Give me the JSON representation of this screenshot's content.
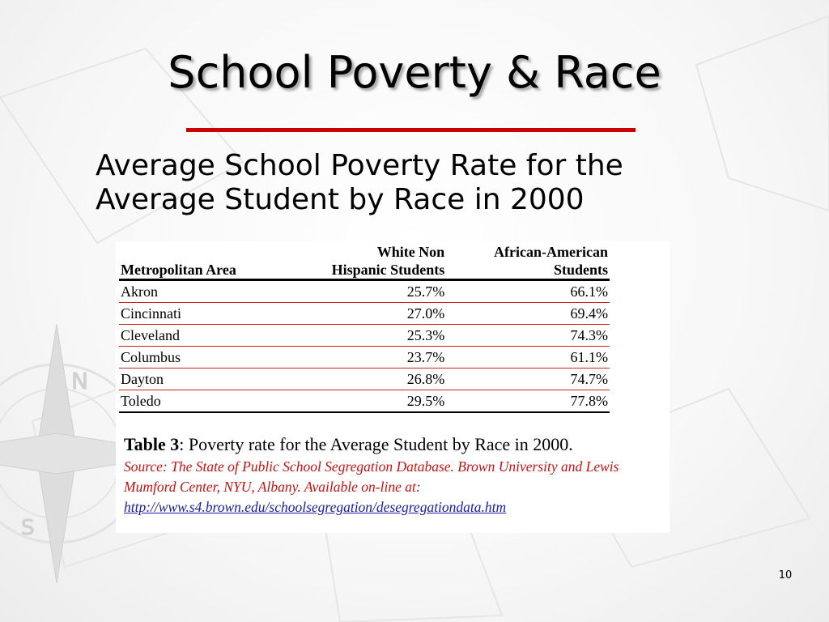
{
  "slide": {
    "title": "School Poverty & Race",
    "subtitle_line1": "Average School Poverty Rate for the",
    "subtitle_line2": "Average Student by Race in 2000",
    "page_number": "10"
  },
  "table": {
    "headers": {
      "area": "Metropolitan Area",
      "white_line1": "White Non",
      "white_line2": "Hispanic Students",
      "black_line1": "African-American",
      "black_line2": "Students"
    },
    "rows": [
      {
        "area": "Akron",
        "white": "25.7%",
        "black": "66.1%"
      },
      {
        "area": "Cincinnati",
        "white": "27.0%",
        "black": "69.4%"
      },
      {
        "area": "Cleveland",
        "white": "25.3%",
        "black": "74.3%"
      },
      {
        "area": "Columbus",
        "white": "23.7%",
        "black": "61.1%"
      },
      {
        "area": "Dayton",
        "white": "26.8%",
        "black": "74.7%"
      },
      {
        "area": "Toledo",
        "white": "29.5%",
        "black": "77.8%"
      }
    ],
    "caption_label": "Table 3",
    "caption_text": ": Poverty rate for the Average Student by Race in 2000.",
    "source_text": "Source: The State of Public School Segregation Database. Brown University and Lewis Mumford Center, NYU, Albany. Available on-line at: ",
    "source_link": "http://www.s4.brown.edu/schoolsegregation/desegregationdata.htm"
  },
  "colors": {
    "accent_rule": "#cc0000",
    "source_text": "#cc1111",
    "link": "#1a1aaa"
  }
}
